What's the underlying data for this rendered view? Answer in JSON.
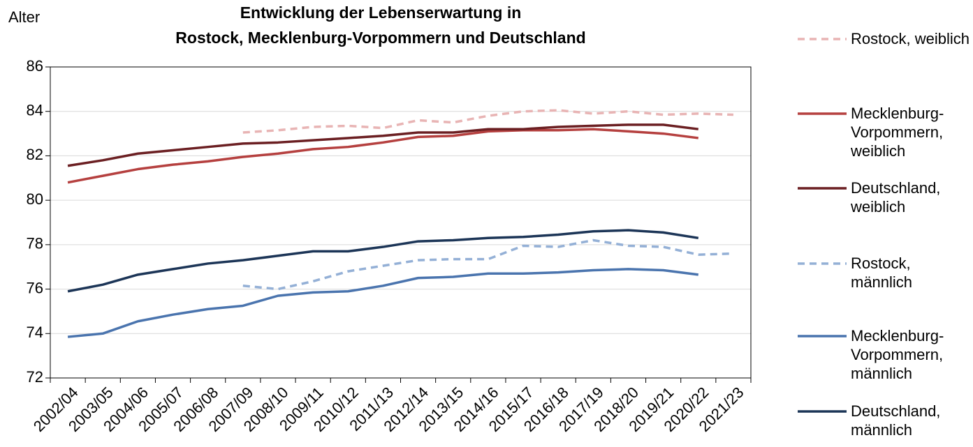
{
  "chart_data": {
    "type": "line",
    "title": [
      "Entwicklung der Lebenserwartung  in",
      "Rostock, Mecklenburg-Vorpommern und Deutschland"
    ],
    "y_label": "Alter",
    "categories": [
      "2002/04",
      "2003/05",
      "2004/06",
      "2005/07",
      "2006/08",
      "2007/09",
      "2008/10",
      "2009/11",
      "2010/12",
      "2011/13",
      "2012/14",
      "2013/15",
      "2014/16",
      "2015/17",
      "2016/18",
      "2017/19",
      "2018/20",
      "2019/21",
      "2020/22",
      "2021/23"
    ],
    "ylim": [
      72,
      86
    ],
    "yticks": [
      72,
      74,
      76,
      78,
      80,
      82,
      84,
      86
    ],
    "grid": true,
    "series": [
      {
        "name": "Rostock, weiblich",
        "color": "#e8b4b4",
        "dashed": true,
        "values": [
          null,
          null,
          null,
          null,
          null,
          83.05,
          83.15,
          83.3,
          83.35,
          83.25,
          83.6,
          83.5,
          83.8,
          84.0,
          84.05,
          83.9,
          84.0,
          83.85,
          83.9,
          83.85
        ]
      },
      {
        "name": "Mecklenburg-Vorpommern, weiblich",
        "color": "#b5403f",
        "dashed": false,
        "values": [
          80.8,
          81.1,
          81.4,
          81.6,
          81.75,
          81.95,
          82.1,
          82.3,
          82.4,
          82.6,
          82.85,
          82.9,
          83.1,
          83.15,
          83.15,
          83.2,
          83.1,
          83.0,
          82.8,
          null
        ]
      },
      {
        "name": "Deutschland, weiblich",
        "color": "#6b1f22",
        "dashed": false,
        "values": [
          81.55,
          81.8,
          82.1,
          82.25,
          82.4,
          82.55,
          82.6,
          82.7,
          82.8,
          82.9,
          83.05,
          83.05,
          83.2,
          83.2,
          83.3,
          83.35,
          83.4,
          83.4,
          83.2,
          null
        ]
      },
      {
        "name": "Rostock, männlich",
        "color": "#94b0d6",
        "dashed": true,
        "values": [
          null,
          null,
          null,
          null,
          null,
          76.15,
          76.0,
          76.35,
          76.8,
          77.05,
          77.3,
          77.35,
          77.35,
          77.95,
          77.9,
          78.2,
          77.95,
          77.9,
          77.55,
          77.6
        ]
      },
      {
        "name": "Mecklenburg-Vorpommern, männlich",
        "color": "#4a74ae",
        "dashed": false,
        "values": [
          73.85,
          74.0,
          74.55,
          74.85,
          75.1,
          75.25,
          75.7,
          75.85,
          75.9,
          76.15,
          76.5,
          76.55,
          76.7,
          76.7,
          76.75,
          76.85,
          76.9,
          76.85,
          76.65,
          null
        ]
      },
      {
        "name": "Deutschland, männlich",
        "color": "#1c3557",
        "dashed": false,
        "values": [
          75.9,
          76.2,
          76.65,
          76.9,
          77.15,
          77.3,
          77.5,
          77.7,
          77.7,
          77.9,
          78.15,
          78.2,
          78.3,
          78.35,
          78.45,
          78.6,
          78.65,
          78.55,
          78.3,
          null
        ]
      }
    ]
  }
}
